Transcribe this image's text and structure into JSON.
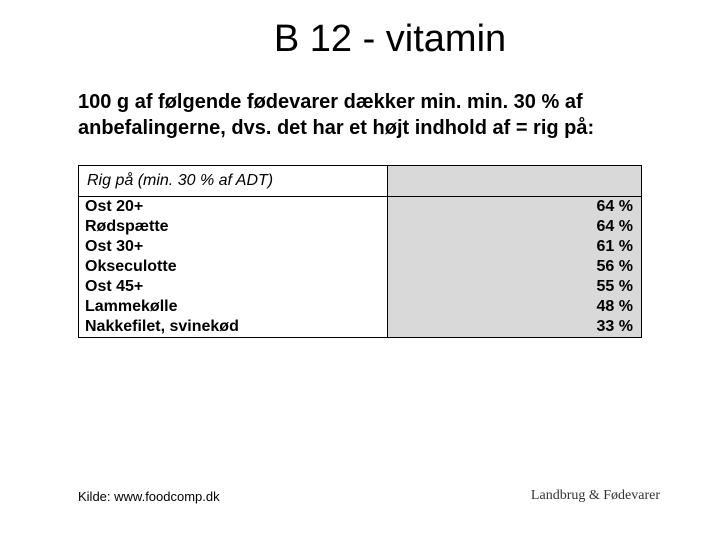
{
  "title": "B 12 - vitamin",
  "intro": "100 g af følgende fødevarer dækker min. min. 30 % af  anbefalingerne, dvs. det har et højt indhold af = rig på:",
  "table": {
    "header_left": "Rig på (min. 30 % af ADT)",
    "header_right": "",
    "columns_pct": [
      55,
      45
    ],
    "value_bg": "#d9d9d9",
    "border_color": "#000000",
    "rows": [
      {
        "name": "Ost 20+",
        "value": "64 %"
      },
      {
        "name": "Rødspætte",
        "value": "64 %"
      },
      {
        "name": "Ost 30+",
        "value": "61 %"
      },
      {
        "name": "Okseculotte",
        "value": "56 %"
      },
      {
        "name": "Ost 45+",
        "value": "55 %"
      },
      {
        "name": "Lammekølle",
        "value": "48 %"
      },
      {
        "name": "Nakkefilet, svinekød",
        "value": "33 %"
      }
    ]
  },
  "source": "Kilde: www.foodcomp.dk",
  "brand": "Landbrug & Fødevarer",
  "colors": {
    "background": "#ffffff",
    "text": "#000000",
    "value_cell_bg": "#d9d9d9"
  },
  "typography": {
    "title_fontsize_pt": 29,
    "intro_fontsize_pt": 15,
    "table_fontsize_pt": 12,
    "footer_fontsize_pt": 10
  }
}
